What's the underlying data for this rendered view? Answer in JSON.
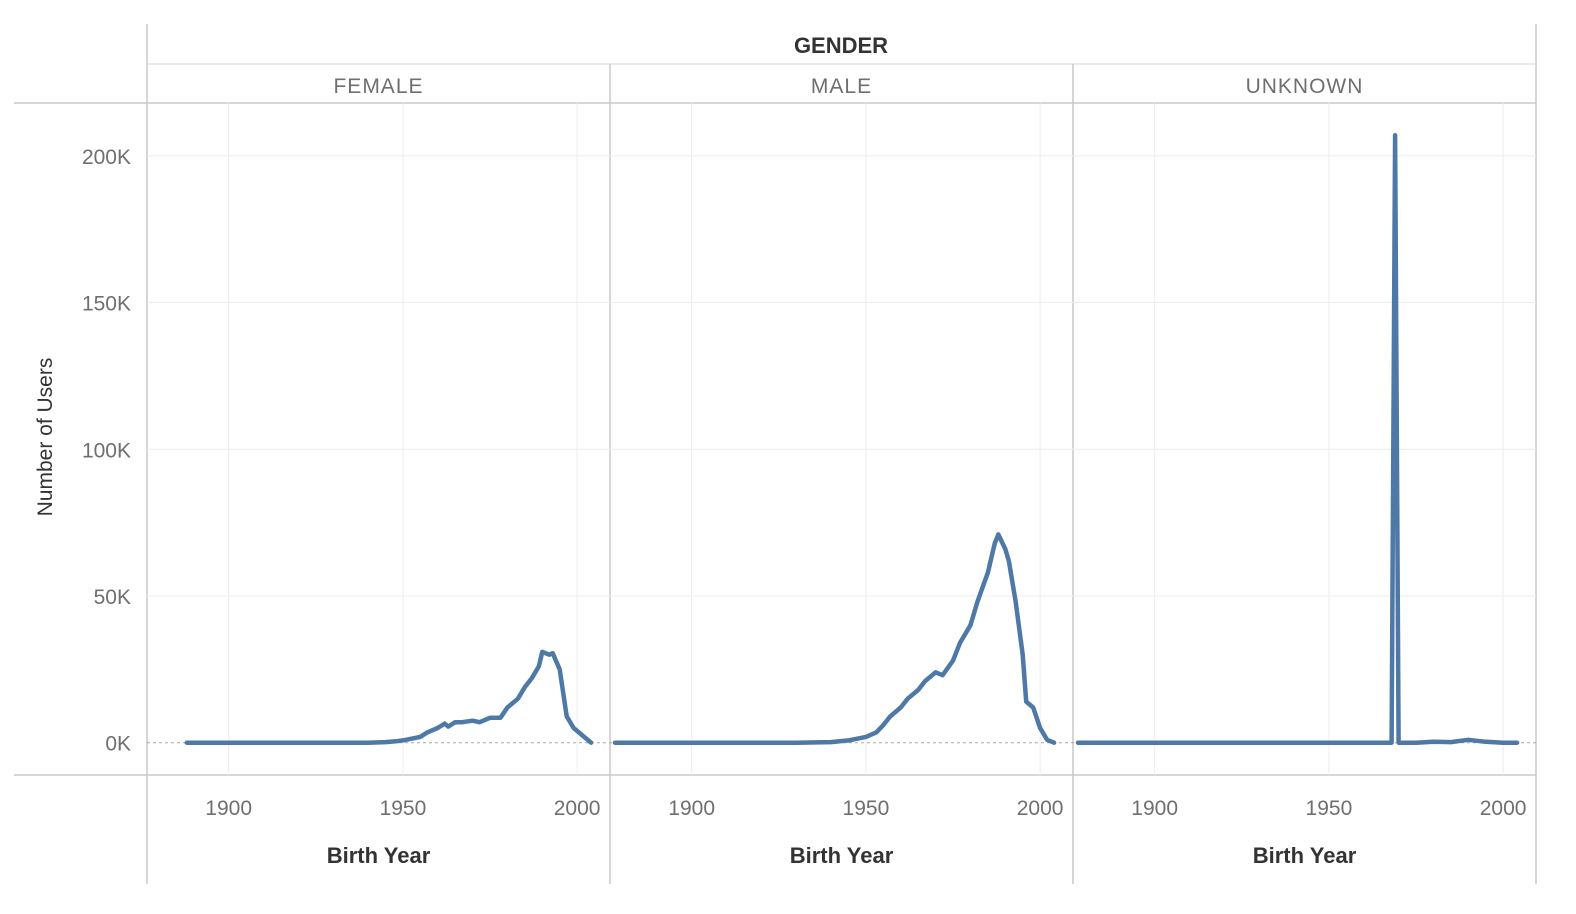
{
  "chart_data": {
    "type": "line",
    "column_header": "GENDER",
    "xlabel": "Birth Year",
    "ylabel": "Number of Users",
    "xlim": [
      1878,
      2008
    ],
    "ylim": [
      -11000,
      218000
    ],
    "x_ticks": [
      1900,
      1950,
      2000
    ],
    "x_tick_labels": [
      "1900",
      "1950",
      "2000"
    ],
    "y_ticks": [
      0,
      50000,
      100000,
      150000,
      200000
    ],
    "y_tick_labels": [
      "0K",
      "50K",
      "100K",
      "150K",
      "200K"
    ],
    "grid": true,
    "line_color": "#4e79a7",
    "panels": [
      {
        "name": "FEMALE",
        "x": [
          1888,
          1900,
          1910,
          1920,
          1930,
          1940,
          1945,
          1948,
          1950,
          1953,
          1955,
          1957,
          1960,
          1962,
          1963,
          1965,
          1967,
          1970,
          1972,
          1975,
          1978,
          1980,
          1983,
          1985,
          1987,
          1989,
          1990,
          1992,
          1993,
          1995,
          1997,
          1999,
          2001,
          2004
        ],
        "values": [
          0,
          0,
          0,
          0,
          0,
          0,
          200,
          500,
          800,
          1500,
          2000,
          3500,
          5000,
          6500,
          5500,
          7000,
          7000,
          7500,
          7000,
          8500,
          8500,
          12000,
          15000,
          19000,
          22000,
          26000,
          31000,
          30000,
          30500,
          25000,
          9000,
          5000,
          3000,
          0
        ]
      },
      {
        "name": "MALE",
        "x": [
          1878,
          1900,
          1920,
          1930,
          1940,
          1945,
          1950,
          1953,
          1955,
          1957,
          1960,
          1962,
          1965,
          1967,
          1970,
          1972,
          1975,
          1977,
          1980,
          1982,
          1985,
          1987,
          1988,
          1990,
          1991,
          1993,
          1995,
          1996,
          1998,
          2000,
          2002,
          2004
        ],
        "values": [
          0,
          0,
          0,
          0,
          200,
          800,
          2000,
          3500,
          6000,
          9000,
          12000,
          15000,
          18000,
          21000,
          24000,
          23000,
          28000,
          34000,
          40000,
          48000,
          58000,
          68000,
          71000,
          66000,
          62000,
          48000,
          30000,
          14000,
          12000,
          5000,
          1000,
          0
        ]
      },
      {
        "name": "UNKNOWN",
        "x": [
          1878,
          1900,
          1940,
          1960,
          1968,
          1969,
          1970,
          1975,
          1980,
          1985,
          1990,
          1995,
          2000,
          2004
        ],
        "values": [
          0,
          0,
          0,
          0,
          0,
          207000,
          0,
          0,
          300,
          200,
          1000,
          300,
          0,
          0
        ]
      }
    ]
  }
}
